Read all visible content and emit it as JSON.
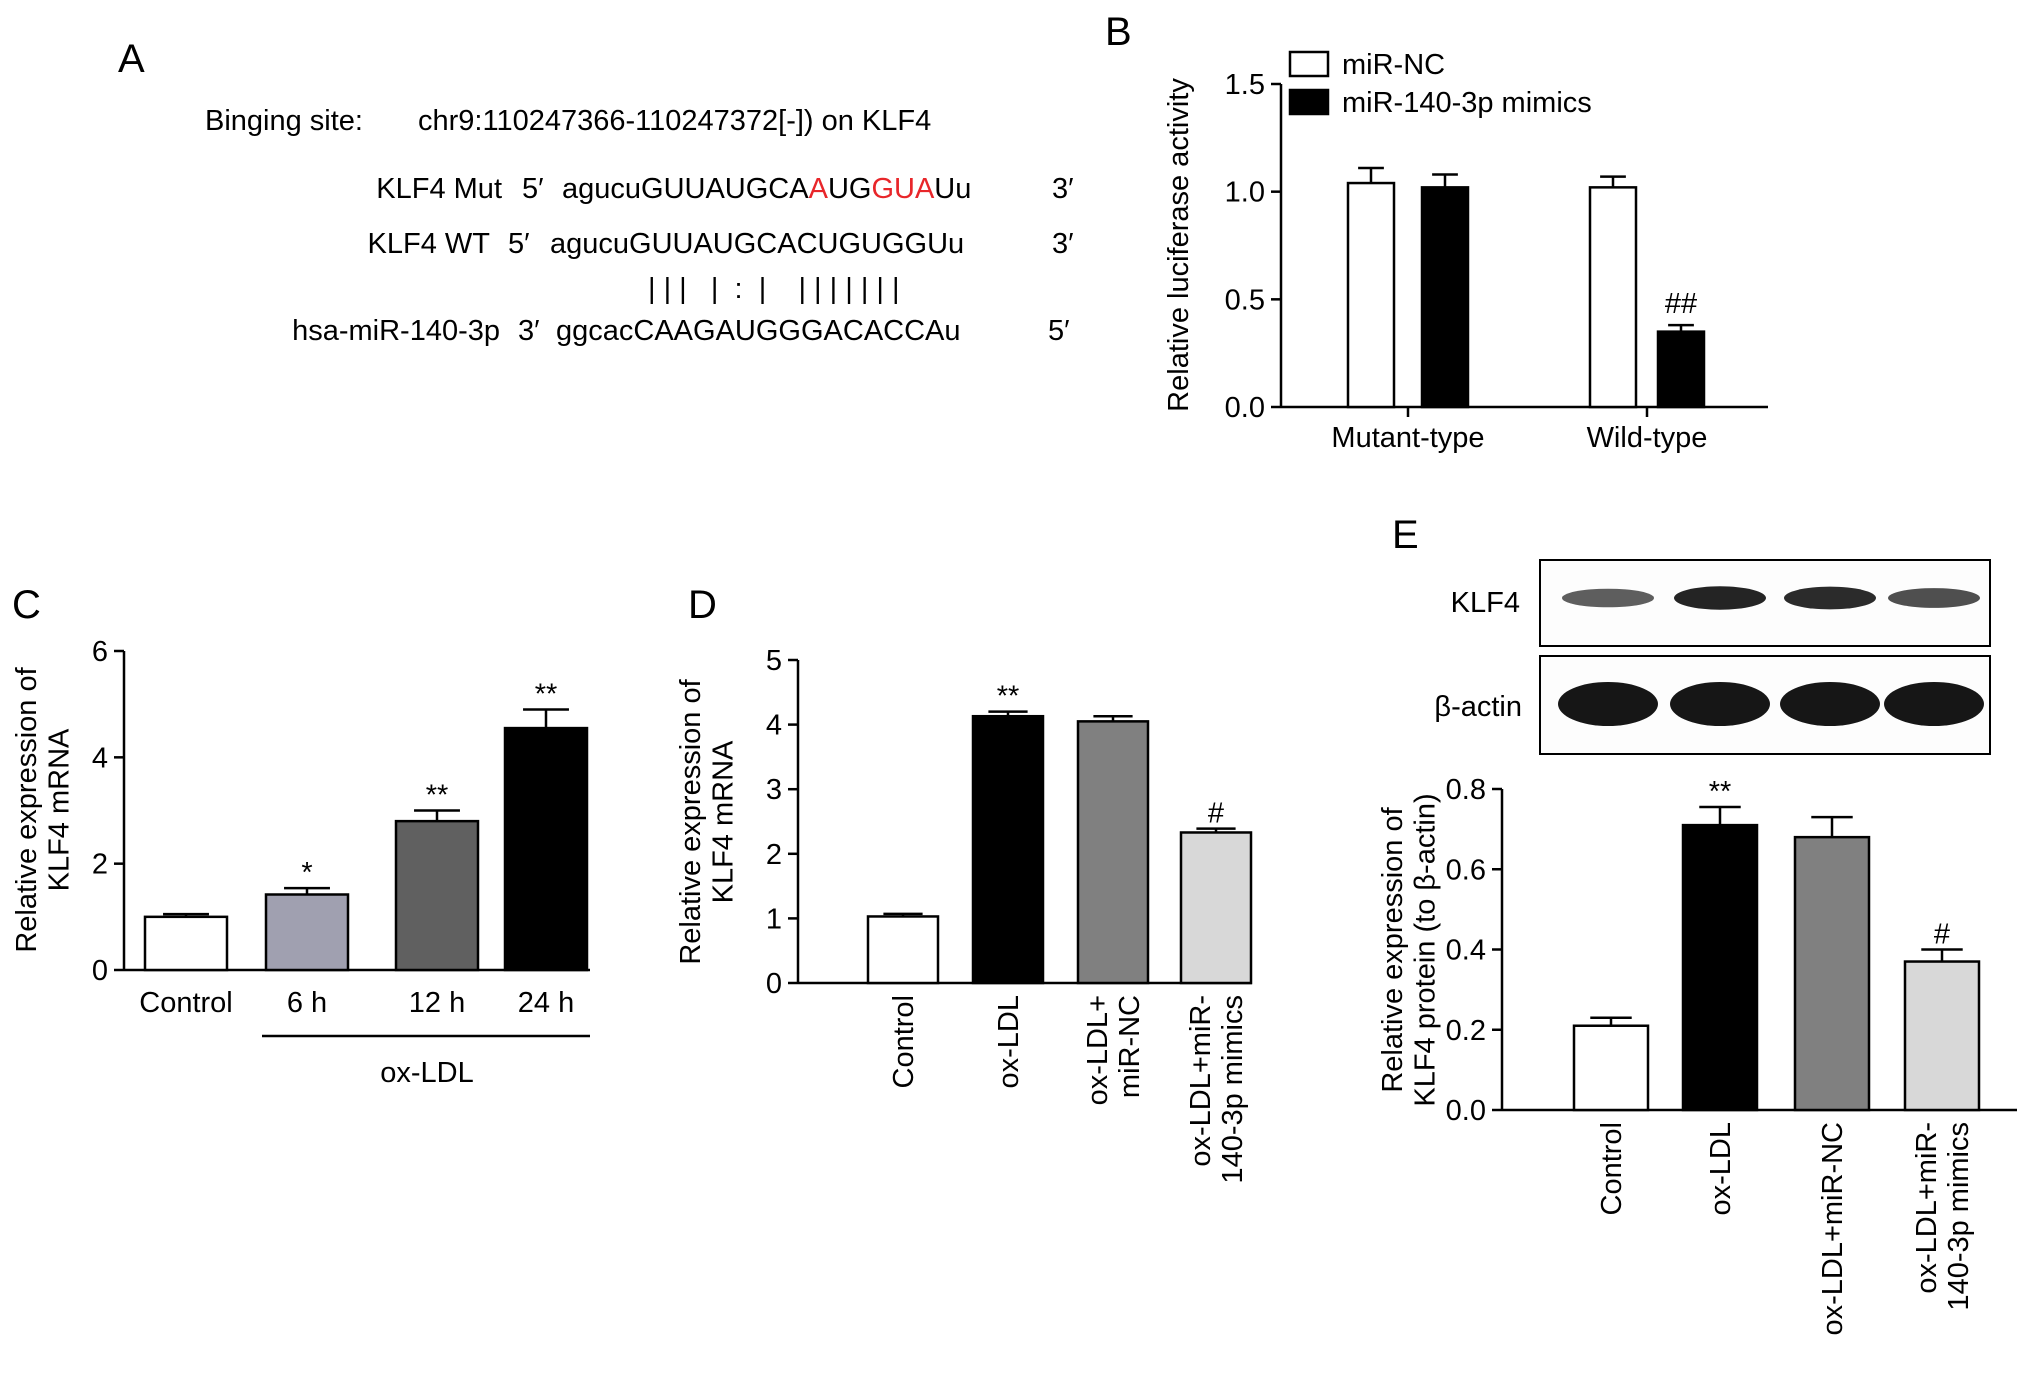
{
  "panels": {
    "A": {
      "letter": "A",
      "binding_label": "Binging site:",
      "binding_site": "chr9:110247366-110247372[-]) on KLF4",
      "rows": [
        {
          "label": "KLF4 Mut",
          "prime5": "5′",
          "seq": [
            {
              "t": "agucuGUUAUGCA",
              "red": false
            },
            {
              "t": "A",
              "red": true
            },
            {
              "t": "UG",
              "red": false
            },
            {
              "t": "GUA",
              "red": true
            },
            {
              "t": "Uu",
              "red": false
            }
          ],
          "prime3": "3′"
        },
        {
          "label": "KLF4 WT",
          "prime5": "5′",
          "seq": [
            {
              "t": "agucuGUUAUGCACUGUGGUu",
              "red": false
            }
          ],
          "prime3": "3′"
        },
        {
          "label": "hsa-miR-140-3p",
          "prime5": "3′",
          "seq": [
            {
              "t": "ggcacCAAGAUGGGACACCAu",
              "red": false
            }
          ],
          "prime3": "5′"
        }
      ],
      "pairing": "| | |   |  :  |    | | | | | | |"
    },
    "B": {
      "letter": "B"
    },
    "C": {
      "letter": "C"
    },
    "D": {
      "letter": "D"
    },
    "E": {
      "letter": "E",
      "blot_labels": [
        "KLF4",
        "β-actin"
      ],
      "klf4_band_intensity": [
        0.55,
        0.95,
        0.9,
        0.65
      ],
      "actin_band_intensity": [
        1,
        1,
        1,
        1
      ]
    }
  },
  "colors": {
    "white": "#ffffff",
    "black": "#000000",
    "dark_gray": "#606060",
    "mid_gray": "#808080",
    "light_gray": "#a0a0b0",
    "pale_gray": "#d8d8d8",
    "mutation_red": "#e8262a"
  },
  "chart_data": [
    {
      "id": "B",
      "type": "bar",
      "ylabel": "Relative luciferase activity",
      "ylim": [
        0,
        1.5
      ],
      "yticks": [
        "0.0",
        "0.5",
        "1.0",
        "1.5"
      ],
      "categories": [
        "Mutant-type",
        "Wild-type"
      ],
      "series": [
        {
          "name": "miR-NC",
          "color": "#ffffff",
          "values": [
            1.04,
            1.02
          ],
          "errors": [
            0.07,
            0.05
          ]
        },
        {
          "name": "miR-140-3p mimics",
          "color": "#000000",
          "values": [
            1.02,
            0.35
          ],
          "errors": [
            0.06,
            0.03
          ]
        }
      ],
      "annotations": [
        {
          "category": 1,
          "series": 1,
          "text": "##"
        }
      ],
      "legend": "top-left"
    },
    {
      "id": "C",
      "type": "bar",
      "ylabel": [
        "Relative expression of",
        "KLF4 mRNA"
      ],
      "ylim": [
        0,
        6
      ],
      "yticks": [
        "0",
        "2",
        "4",
        "6"
      ],
      "categories": [
        "Control",
        "6 h",
        "12 h",
        "24 h"
      ],
      "values": [
        1.0,
        1.42,
        2.8,
        4.55
      ],
      "errors": [
        0.05,
        0.12,
        0.2,
        0.35
      ],
      "colors": [
        "#ffffff",
        "#a0a0b0",
        "#606060",
        "#000000"
      ],
      "annotations": [
        "",
        "*",
        "**",
        "**"
      ],
      "group_label": "ox-LDL"
    },
    {
      "id": "D",
      "type": "bar",
      "ylabel": [
        "Relative expression of",
        "KLF4 mRNA"
      ],
      "ylim": [
        0,
        5
      ],
      "yticks": [
        "0",
        "1",
        "2",
        "3",
        "4",
        "5"
      ],
      "categories": [
        [
          "Control"
        ],
        [
          "ox-LDL"
        ],
        [
          "ox-LDL+",
          "miR-NC"
        ],
        [
          "ox-LDL+miR-",
          "140-3p mimics"
        ]
      ],
      "values": [
        1.03,
        4.13,
        4.05,
        2.33
      ],
      "errors": [
        0.04,
        0.07,
        0.08,
        0.06
      ],
      "colors": [
        "#ffffff",
        "#000000",
        "#808080",
        "#d8d8d8"
      ],
      "annotations": [
        "",
        "**",
        "",
        "#"
      ]
    },
    {
      "id": "E",
      "type": "bar",
      "ylabel": [
        "Relative expression of",
        "KLF4 protein (to β-actin)"
      ],
      "ylim": [
        0,
        0.8
      ],
      "yticks": [
        "0.0",
        "0.2",
        "0.4",
        "0.6",
        "0.8"
      ],
      "categories": [
        [
          "Control"
        ],
        [
          "ox-LDL"
        ],
        [
          "ox-LDL+miR-NC"
        ],
        [
          "ox-LDL+miR-",
          "140-3p mimics"
        ]
      ],
      "values": [
        0.21,
        0.71,
        0.68,
        0.37
      ],
      "errors": [
        0.02,
        0.045,
        0.05,
        0.03
      ],
      "colors": [
        "#ffffff",
        "#000000",
        "#808080",
        "#d8d8d8"
      ],
      "annotations": [
        "",
        "**",
        "",
        "#"
      ]
    }
  ]
}
